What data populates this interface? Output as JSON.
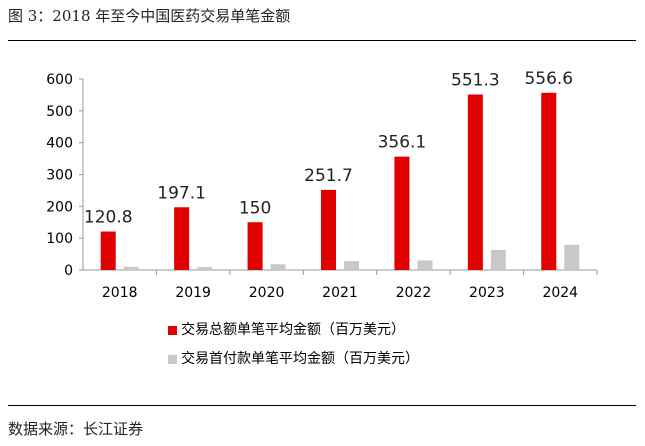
{
  "figure": {
    "title": "图 3：2018 年至今中国医药交易单笔金额",
    "source": "数据来源：长江证券"
  },
  "colors": {
    "total": "#e00000",
    "upfront": "#c8c8c8"
  },
  "chart_data": {
    "type": "bar",
    "title": "",
    "xlabel": "",
    "ylabel": "",
    "categories": [
      "2018",
      "2019",
      "2020",
      "2021",
      "2022",
      "2023",
      "2024"
    ],
    "ylim": [
      0,
      600
    ],
    "yticks": [
      0,
      100,
      200,
      300,
      400,
      500,
      600
    ],
    "grid": false,
    "legend_position": "bottom",
    "series": [
      {
        "name": "交易总额单笔平均金额（百万美元）",
        "values": [
          120.8,
          197.1,
          150,
          251.7,
          356.1,
          551.3,
          556.6
        ],
        "labels": [
          "120.8",
          "197.1",
          "150",
          "251.7",
          "356.1",
          "551.3",
          "556.6"
        ]
      },
      {
        "name": "交易首付款单笔平均金额（百万美元）",
        "values": [
          10,
          9,
          18,
          28,
          30,
          63,
          79
        ]
      }
    ]
  }
}
